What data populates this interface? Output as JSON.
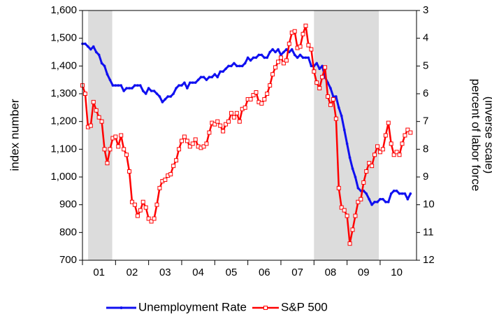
{
  "chart_data": {
    "type": "line",
    "ylabel": "index number",
    "y2label": [
      "percent of labor force",
      "(inverse scale)"
    ],
    "xlim": [
      2001,
      2011.1
    ],
    "xticks": [
      {
        "value": 2001.5,
        "label": "01"
      },
      {
        "value": 2002.5,
        "label": "02"
      },
      {
        "value": 2003.5,
        "label": "03"
      },
      {
        "value": 2004.5,
        "label": "04"
      },
      {
        "value": 2005.5,
        "label": "05"
      },
      {
        "value": 2006.5,
        "label": "06"
      },
      {
        "value": 2007.5,
        "label": "07"
      },
      {
        "value": 2008.5,
        "label": "08"
      },
      {
        "value": 2009.5,
        "label": "09"
      },
      {
        "value": 2010.5,
        "label": "10"
      }
    ],
    "ylim": [
      700,
      1600
    ],
    "yticks": [
      {
        "value": 700,
        "label": "700"
      },
      {
        "value": 800,
        "label": "800"
      },
      {
        "value": 900,
        "label": "900"
      },
      {
        "value": 1000,
        "label": "1,000"
      },
      {
        "value": 1100,
        "label": "1,100"
      },
      {
        "value": 1200,
        "label": "1,200"
      },
      {
        "value": 1300,
        "label": "1,300"
      },
      {
        "value": 1400,
        "label": "1,400"
      },
      {
        "value": 1500,
        "label": "1,500"
      },
      {
        "value": 1600,
        "label": "1,600"
      }
    ],
    "y2lim": [
      12,
      3
    ],
    "y2ticks": [
      3,
      4,
      5,
      6,
      7,
      8,
      9,
      10,
      11,
      12
    ],
    "shaded_periods": [
      [
        2001.17,
        2001.9
      ],
      [
        2008.0,
        2009.96
      ]
    ],
    "shade_color": "#dcdcdc",
    "legend": "bottom",
    "x": [
      2001,
      2001.083,
      2001.167,
      2001.25,
      2001.333,
      2001.417,
      2001.5,
      2001.583,
      2001.667,
      2001.75,
      2001.833,
      2001.917,
      2002,
      2002.083,
      2002.167,
      2002.25,
      2002.333,
      2002.417,
      2002.5,
      2002.583,
      2002.667,
      2002.75,
      2002.833,
      2002.917,
      2003,
      2003.083,
      2003.167,
      2003.25,
      2003.333,
      2003.417,
      2003.5,
      2003.583,
      2003.667,
      2003.75,
      2003.833,
      2003.917,
      2004,
      2004.083,
      2004.167,
      2004.25,
      2004.333,
      2004.417,
      2004.5,
      2004.583,
      2004.667,
      2004.75,
      2004.833,
      2004.917,
      2005,
      2005.083,
      2005.167,
      2005.25,
      2005.333,
      2005.417,
      2005.5,
      2005.583,
      2005.667,
      2005.75,
      2005.833,
      2005.917,
      2006,
      2006.083,
      2006.167,
      2006.25,
      2006.333,
      2006.417,
      2006.5,
      2006.583,
      2006.667,
      2006.75,
      2006.833,
      2006.917,
      2007,
      2007.083,
      2007.167,
      2007.25,
      2007.333,
      2007.417,
      2007.5,
      2007.583,
      2007.667,
      2007.75,
      2007.833,
      2007.917,
      2008,
      2008.083,
      2008.167,
      2008.25,
      2008.333,
      2008.417,
      2008.5,
      2008.583,
      2008.667,
      2008.75,
      2008.833,
      2008.917,
      2009,
      2009.083,
      2009.167,
      2009.25,
      2009.333,
      2009.417,
      2009.5,
      2009.583,
      2009.667,
      2009.75,
      2009.833,
      2009.917,
      2010,
      2010.083,
      2010.167,
      2010.25,
      2010.333,
      2010.417,
      2010.5,
      2010.583,
      2010.667,
      2010.75,
      2010.833,
      2010.917
    ],
    "series": [
      {
        "name": "Unemployment Rate",
        "color": "#1010f0",
        "axis": "y2",
        "marker": "dot",
        "values": [
          4.2,
          4.2,
          4.3,
          4.4,
          4.3,
          4.5,
          4.6,
          4.9,
          5.0,
          5.3,
          5.5,
          5.7,
          5.7,
          5.7,
          5.7,
          5.9,
          5.8,
          5.8,
          5.8,
          5.7,
          5.7,
          5.7,
          5.9,
          6.0,
          5.8,
          5.9,
          5.9,
          6.0,
          6.1,
          6.3,
          6.2,
          6.1,
          6.1,
          6.0,
          5.8,
          5.7,
          5.7,
          5.6,
          5.8,
          5.6,
          5.6,
          5.6,
          5.5,
          5.4,
          5.4,
          5.5,
          5.4,
          5.4,
          5.3,
          5.4,
          5.2,
          5.2,
          5.1,
          5.0,
          5.0,
          4.9,
          5.0,
          5.0,
          5.0,
          4.9,
          4.7,
          4.8,
          4.7,
          4.7,
          4.6,
          4.6,
          4.7,
          4.7,
          4.5,
          4.4,
          4.5,
          4.4,
          4.6,
          4.5,
          4.4,
          4.5,
          4.4,
          4.6,
          4.7,
          4.6,
          4.7,
          4.7,
          4.7,
          5.0,
          5.0,
          4.9,
          5.1,
          5.0,
          5.4,
          5.6,
          5.8,
          6.1,
          6.1,
          6.5,
          6.8,
          7.3,
          7.8,
          8.3,
          8.7,
          9.0,
          9.4,
          9.5,
          9.5,
          9.6,
          9.8,
          10.0,
          9.9,
          9.9,
          9.8,
          9.8,
          9.9,
          9.9,
          9.6,
          9.5,
          9.5,
          9.6,
          9.6,
          9.6,
          9.8,
          9.6
        ]
      },
      {
        "name": "S&P 500",
        "color": "#ff0000",
        "axis": "y",
        "marker": "square",
        "values": [
          1330,
          1300,
          1180,
          1185,
          1270,
          1240,
          1215,
          1200,
          1100,
          1050,
          1100,
          1140,
          1145,
          1110,
          1150,
          1100,
          1080,
          1020,
          910,
          900,
          860,
          880,
          910,
          890,
          850,
          840,
          850,
          900,
          960,
          985,
          990,
          1005,
          1010,
          1040,
          1060,
          1100,
          1130,
          1145,
          1130,
          1110,
          1120,
          1135,
          1110,
          1105,
          1110,
          1120,
          1160,
          1195,
          1190,
          1200,
          1185,
          1165,
          1190,
          1200,
          1230,
          1215,
          1230,
          1200,
          1245,
          1250,
          1280,
          1280,
          1295,
          1305,
          1270,
          1265,
          1280,
          1300,
          1330,
          1370,
          1395,
          1415,
          1430,
          1410,
          1420,
          1480,
          1520,
          1525,
          1465,
          1470,
          1515,
          1545,
          1475,
          1460,
          1380,
          1340,
          1320,
          1360,
          1395,
          1290,
          1260,
          1280,
          1210,
          960,
          890,
          880,
          860,
          760,
          810,
          860,
          910,
          920,
          980,
          1020,
          1050,
          1040,
          1080,
          1110,
          1090,
          1100,
          1150,
          1195,
          1120,
          1080,
          1090,
          1080,
          1120,
          1150,
          1170,
          1160
        ]
      }
    ]
  }
}
